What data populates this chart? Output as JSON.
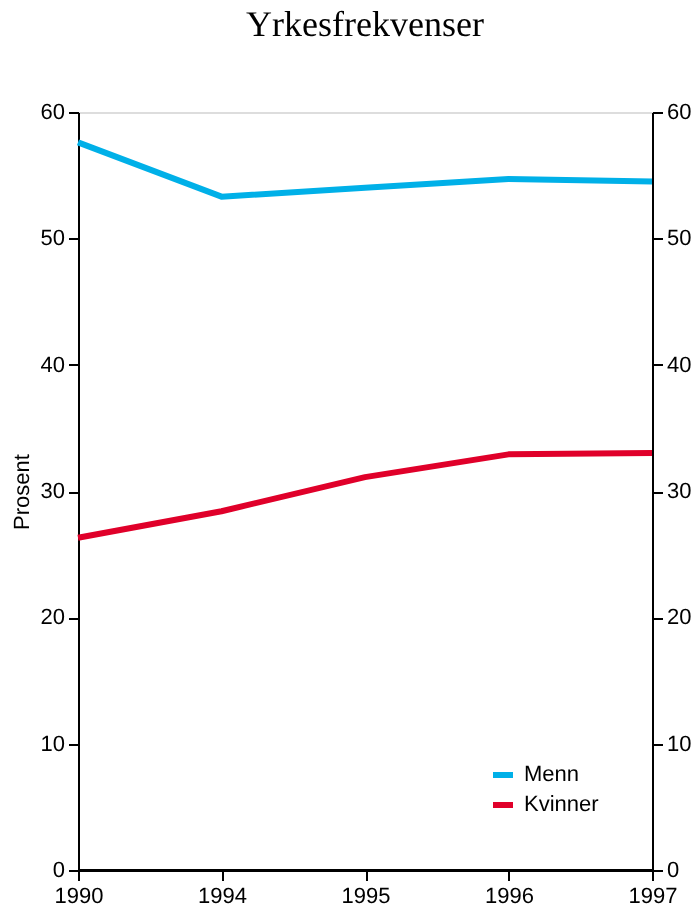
{
  "chart_data": {
    "type": "line",
    "title": "Yrkesfrekvenser",
    "ylabel": "Prosent",
    "categories": [
      "1990",
      "1994",
      "1995",
      "1996",
      "1997"
    ],
    "series": [
      {
        "name": "Menn",
        "color": "#00b0e8",
        "values": [
          57.6,
          53.3,
          54.0,
          54.7,
          54.5
        ]
      },
      {
        "name": "Kvinner",
        "color": "#e0002a",
        "values": [
          26.3,
          28.4,
          31.1,
          32.9,
          33.0
        ]
      }
    ],
    "ylim": [
      0,
      60
    ],
    "yticks": [
      0,
      10,
      20,
      30,
      40,
      50,
      60
    ],
    "y2lim": [
      0,
      60
    ],
    "y2ticks": [
      0,
      10,
      20,
      30,
      40,
      50,
      60
    ],
    "legend": "bottom right",
    "grid": false,
    "marker": "none",
    "line_style": "solid"
  }
}
